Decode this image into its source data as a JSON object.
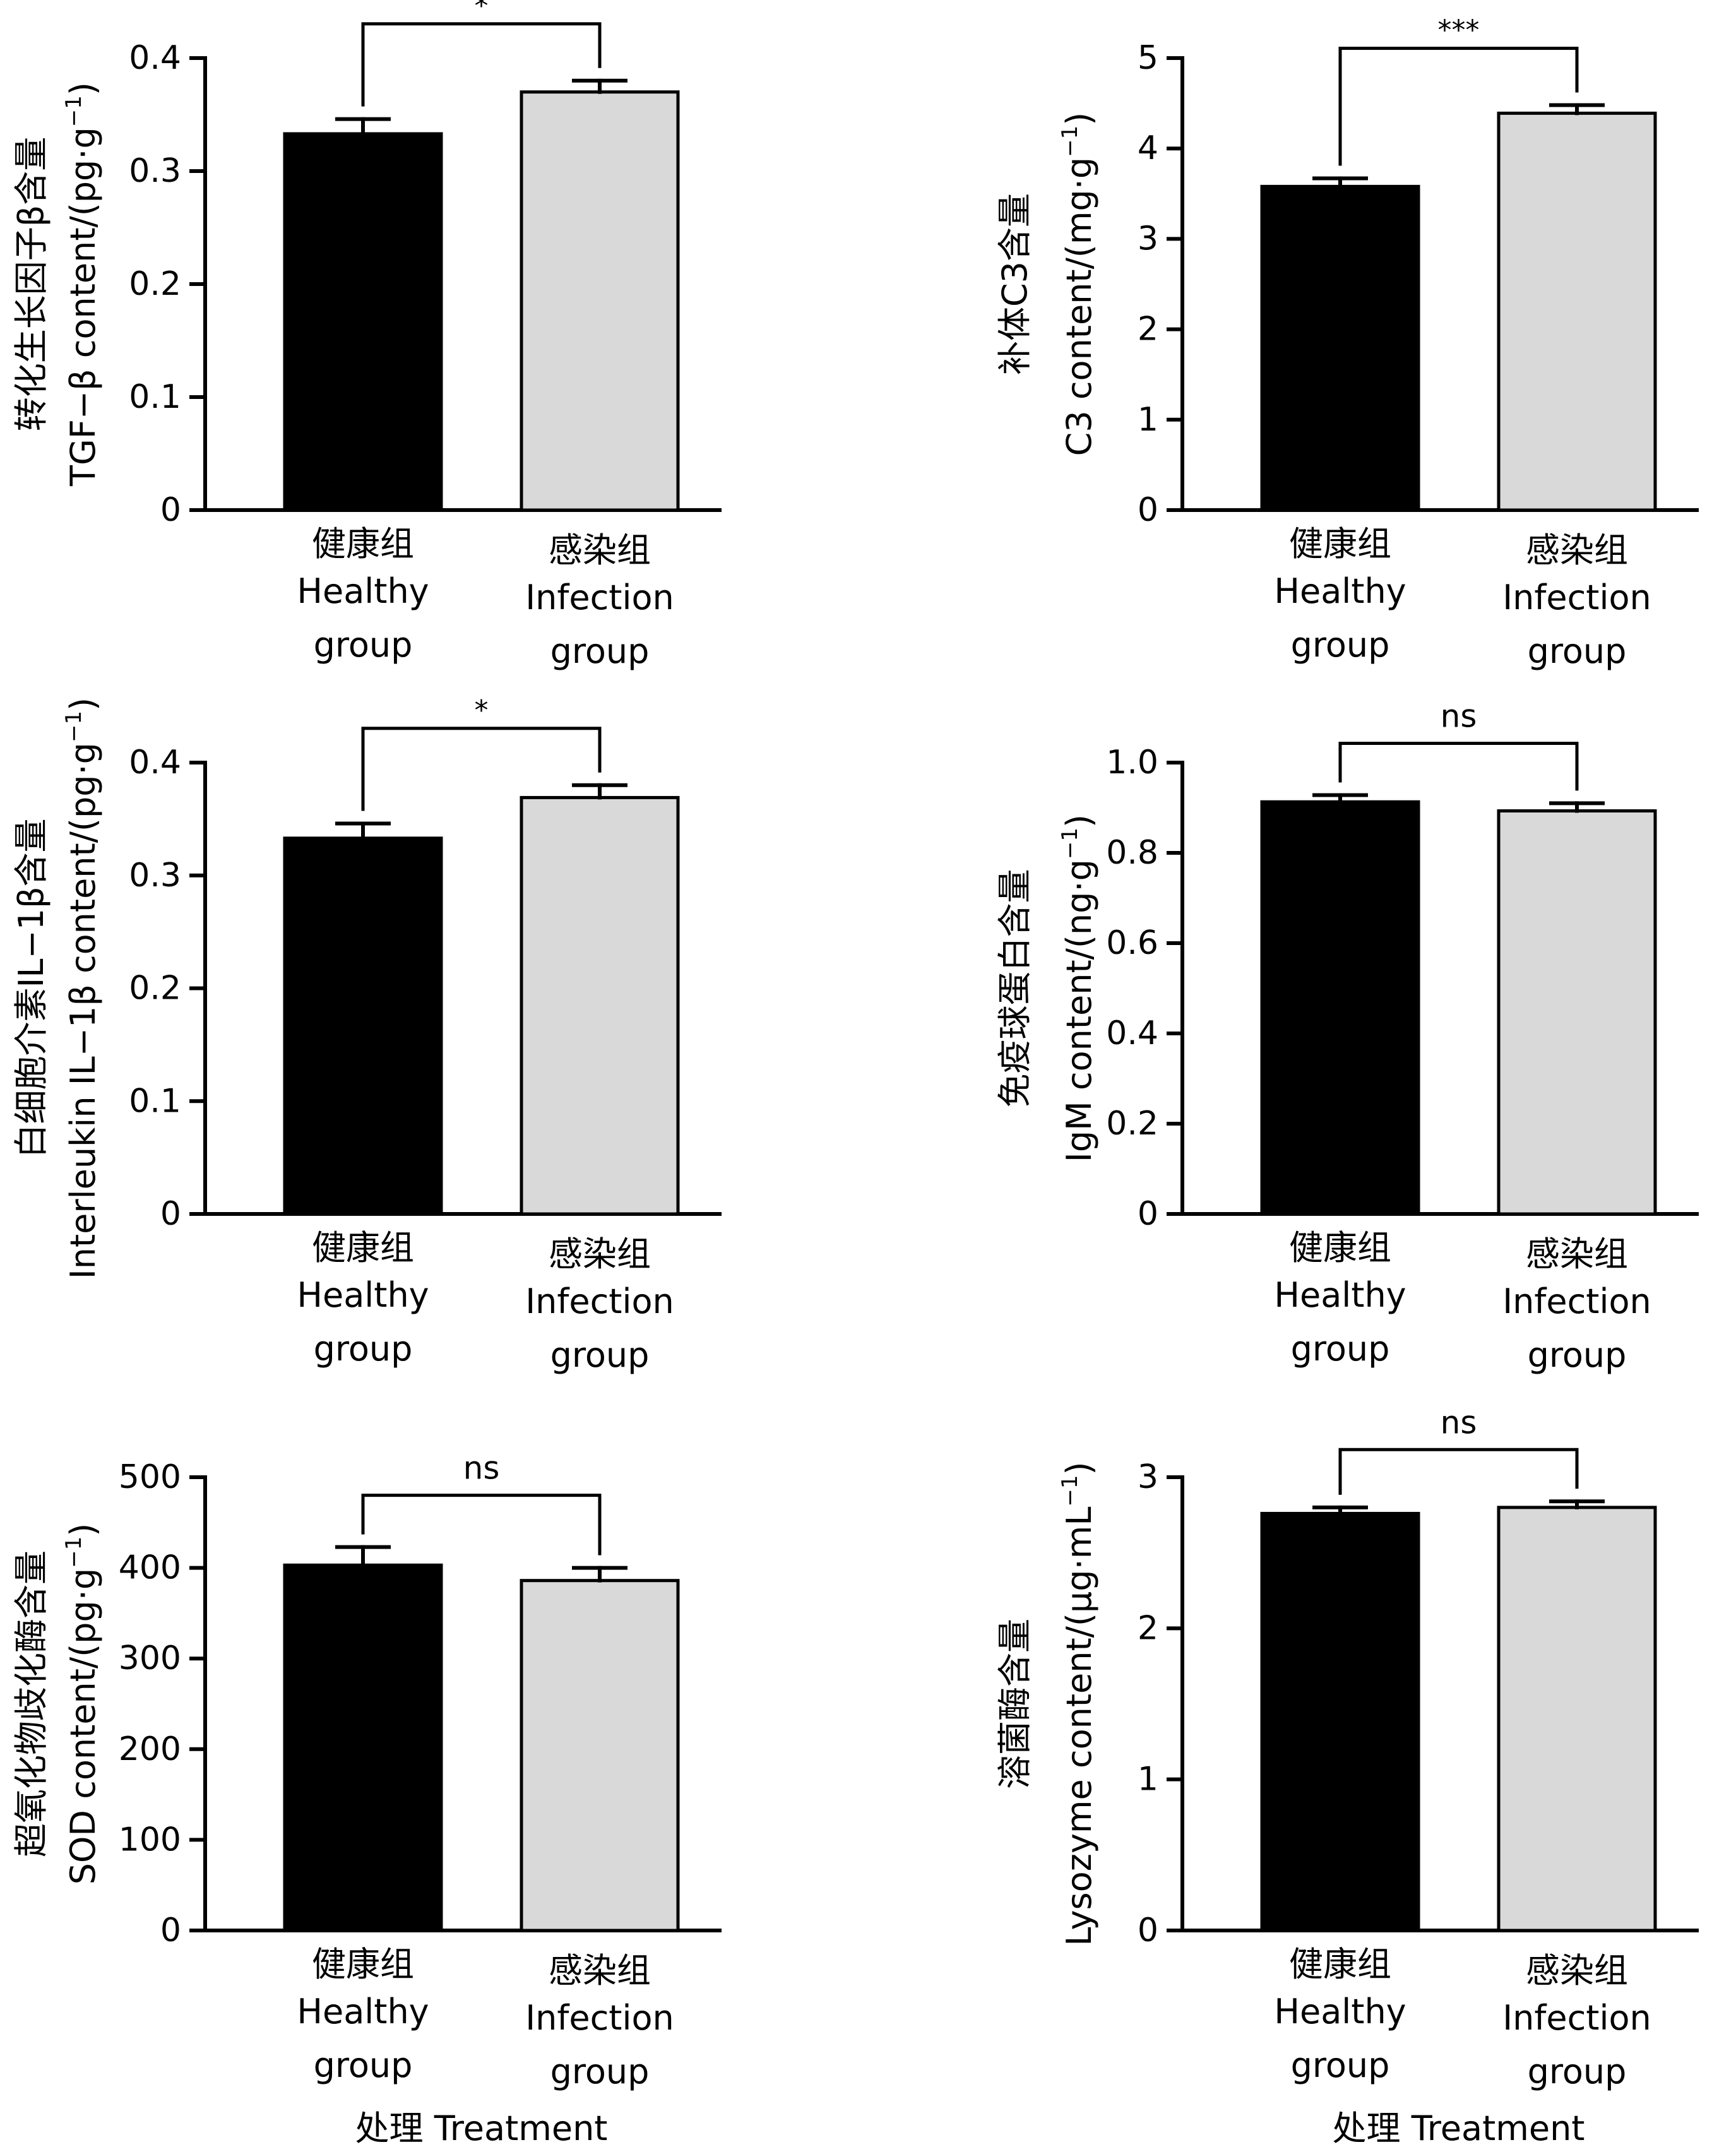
{
  "figure": {
    "bar_colors": [
      "#000000",
      "#d9d9d9"
    ],
    "x_title_bottom": "处理 Treatment"
  },
  "chart_data": [
    {
      "type": "bar",
      "ylabel_cn": "转化生长因子β含量",
      "ylabel_en": "TGF−β content/(pg·g",
      "ylabel_sup": "−1",
      "ylabel_close": ")",
      "ylim": [
        0,
        0.4
      ],
      "yticks": [
        0,
        0.1,
        0.2,
        0.3,
        0.4
      ],
      "ytick_labels": [
        "0",
        "0.1",
        "0.2",
        "0.3",
        "0.4"
      ],
      "categories_cn": [
        "健康组",
        "感染组"
      ],
      "categories_en_1": [
        "Healthy",
        "Infection"
      ],
      "categories_en_2": [
        "group",
        "group"
      ],
      "values": [
        0.333,
        0.37
      ],
      "errors": [
        0.013,
        0.01
      ],
      "significance": "*",
      "xtitle": ""
    },
    {
      "type": "bar",
      "ylabel_cn": "补体C3含量",
      "ylabel_en": "C3 content/(mg·g",
      "ylabel_sup": "−1",
      "ylabel_close": ")",
      "ylim": [
        0,
        5
      ],
      "yticks": [
        0,
        1,
        2,
        3,
        4,
        5
      ],
      "ytick_labels": [
        "0",
        "1",
        "2",
        "3",
        "4",
        "5"
      ],
      "categories_cn": [
        "健康组",
        "感染组"
      ],
      "categories_en_1": [
        "Healthy",
        "Infection"
      ],
      "categories_en_2": [
        "group",
        "group"
      ],
      "values": [
        3.58,
        4.39
      ],
      "errors": [
        0.09,
        0.09
      ],
      "significance": "***",
      "xtitle": ""
    },
    {
      "type": "bar",
      "ylabel_cn": "白细胞介素IL−1β含量",
      "ylabel_en": "Interleukin IL−1β content/(pg·g",
      "ylabel_sup": "−1",
      "ylabel_close": ")",
      "ylim": [
        0,
        0.4
      ],
      "yticks": [
        0,
        0.1,
        0.2,
        0.3,
        0.4
      ],
      "ytick_labels": [
        "0",
        "0.1",
        "0.2",
        "0.3",
        "0.4"
      ],
      "categories_cn": [
        "健康组",
        "感染组"
      ],
      "categories_en_1": [
        "Healthy",
        "Infection"
      ],
      "categories_en_2": [
        "group",
        "group"
      ],
      "values": [
        0.333,
        0.369
      ],
      "errors": [
        0.013,
        0.011
      ],
      "significance": "*",
      "xtitle": ""
    },
    {
      "type": "bar",
      "ylabel_cn": "免疫球蛋白含量",
      "ylabel_en": "IgM content/(ng·g",
      "ylabel_sup": "−1",
      "ylabel_close": ")",
      "ylim": [
        0,
        1.0
      ],
      "yticks": [
        0,
        0.2,
        0.4,
        0.6,
        0.8,
        1.0
      ],
      "ytick_labels": [
        "0",
        "0.2",
        "0.4",
        "0.6",
        "0.8",
        "1.0"
      ],
      "categories_cn": [
        "健康组",
        "感染组"
      ],
      "categories_en_1": [
        "Healthy",
        "Infection"
      ],
      "categories_en_2": [
        "group",
        "group"
      ],
      "values": [
        0.913,
        0.893
      ],
      "errors": [
        0.015,
        0.017
      ],
      "significance": "ns",
      "xtitle": ""
    },
    {
      "type": "bar",
      "ylabel_cn": "超氧化物歧化酶含量",
      "ylabel_en": "SOD content/(pg·g",
      "ylabel_sup": "−1",
      "ylabel_close": ")",
      "ylim": [
        0,
        500
      ],
      "yticks": [
        0,
        100,
        200,
        300,
        400,
        500
      ],
      "ytick_labels": [
        "0",
        "100",
        "200",
        "300",
        "400",
        "500"
      ],
      "categories_cn": [
        "健康组",
        "感染组"
      ],
      "categories_en_1": [
        "Healthy",
        "Infection"
      ],
      "categories_en_2": [
        "group",
        "group"
      ],
      "values": [
        403,
        386
      ],
      "errors": [
        20,
        14
      ],
      "significance": "ns",
      "xtitle": "处理 Treatment"
    },
    {
      "type": "bar",
      "ylabel_cn": "溶菌酶含量",
      "ylabel_en": "Lysozyme content/(μg·mL",
      "ylabel_sup": "−1",
      "ylabel_close": ")",
      "ylim": [
        0,
        3
      ],
      "yticks": [
        0,
        1,
        2,
        3
      ],
      "ytick_labels": [
        "0",
        "1",
        "2",
        "3"
      ],
      "categories_cn": [
        "健康组",
        "感染组"
      ],
      "categories_en_1": [
        "Healthy",
        "Infection"
      ],
      "categories_en_2": [
        "group",
        "group"
      ],
      "values": [
        2.76,
        2.8
      ],
      "errors": [
        0.04,
        0.04
      ],
      "significance": "ns",
      "xtitle": "处理 Treatment"
    }
  ]
}
